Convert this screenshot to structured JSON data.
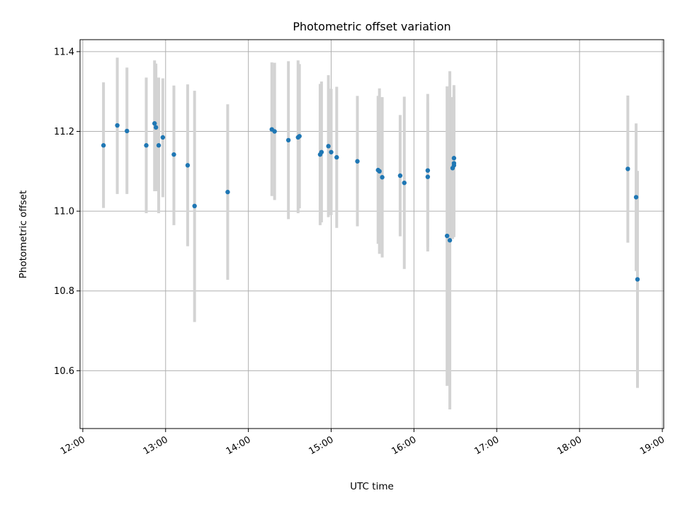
{
  "chart_data": {
    "type": "scatter",
    "title": "Photometric offset variation",
    "xlabel": "UTC time",
    "ylabel": "Photometric offset",
    "x_ticks": [
      "12:00",
      "13:00",
      "14:00",
      "15:00",
      "16:00",
      "17:00",
      "18:00",
      "19:00"
    ],
    "y_ticks": [
      "10.6",
      "10.8",
      "11.0",
      "11.2",
      "11.4"
    ],
    "xlim": [
      "11:58",
      "19:01"
    ],
    "ylim": [
      10.455,
      11.43
    ],
    "grid": true,
    "colors": {
      "point": "#1f77b4",
      "errorbar": "#d3d3d3",
      "grid": "#b0b0b0"
    },
    "points": [
      {
        "t": "12:15",
        "y": 11.165,
        "lo": 11.008,
        "hi": 11.323
      },
      {
        "t": "12:25",
        "y": 11.215,
        "lo": 11.043,
        "hi": 11.385
      },
      {
        "t": "12:32",
        "y": 11.201,
        "lo": 11.043,
        "hi": 11.36
      },
      {
        "t": "12:46",
        "y": 11.165,
        "lo": 10.995,
        "hi": 11.335
      },
      {
        "t": "12:52",
        "y": 11.22,
        "lo": 11.05,
        "hi": 11.378
      },
      {
        "t": "12:53",
        "y": 11.21,
        "lo": 11.05,
        "hi": 11.37
      },
      {
        "t": "12:55",
        "y": 11.165,
        "lo": 10.995,
        "hi": 11.335
      },
      {
        "t": "12:58",
        "y": 11.185,
        "lo": 11.035,
        "hi": 11.333
      },
      {
        "t": "13:06",
        "y": 11.142,
        "lo": 10.965,
        "hi": 11.315
      },
      {
        "t": "13:16",
        "y": 11.115,
        "lo": 10.912,
        "hi": 11.318
      },
      {
        "t": "13:21",
        "y": 11.013,
        "lo": 10.722,
        "hi": 11.302
      },
      {
        "t": "13:45",
        "y": 11.048,
        "lo": 10.828,
        "hi": 11.268
      },
      {
        "t": "14:17",
        "y": 11.205,
        "lo": 11.038,
        "hi": 11.373
      },
      {
        "t": "14:19",
        "y": 11.2,
        "lo": 11.028,
        "hi": 11.372
      },
      {
        "t": "14:29",
        "y": 11.178,
        "lo": 10.98,
        "hi": 11.376
      },
      {
        "t": "14:36",
        "y": 11.185,
        "lo": 10.995,
        "hi": 11.378
      },
      {
        "t": "14:37",
        "y": 11.188,
        "lo": 11.007,
        "hi": 11.369
      },
      {
        "t": "14:52",
        "y": 11.142,
        "lo": 10.965,
        "hi": 11.319
      },
      {
        "t": "14:53",
        "y": 11.148,
        "lo": 10.972,
        "hi": 11.325
      },
      {
        "t": "14:58",
        "y": 11.163,
        "lo": 10.985,
        "hi": 11.341
      },
      {
        "t": "15:00",
        "y": 11.148,
        "lo": 10.99,
        "hi": 11.307
      },
      {
        "t": "15:04",
        "y": 11.135,
        "lo": 10.958,
        "hi": 11.312
      },
      {
        "t": "15:19",
        "y": 11.125,
        "lo": 10.962,
        "hi": 11.289
      },
      {
        "t": "15:34",
        "y": 11.103,
        "lo": 10.918,
        "hi": 11.289
      },
      {
        "t": "15:35",
        "y": 11.1,
        "lo": 10.893,
        "hi": 11.308
      },
      {
        "t": "15:37",
        "y": 11.085,
        "lo": 10.884,
        "hi": 11.286
      },
      {
        "t": "15:50",
        "y": 11.089,
        "lo": 10.937,
        "hi": 11.241
      },
      {
        "t": "15:53",
        "y": 11.071,
        "lo": 10.855,
        "hi": 11.287
      },
      {
        "t": "16:10",
        "y": 11.102,
        "lo": 10.91,
        "hi": 11.294
      },
      {
        "t": "16:10",
        "y": 11.086,
        "lo": 10.899,
        "hi": 11.273
      },
      {
        "t": "16:24",
        "y": 10.938,
        "lo": 10.562,
        "hi": 11.313
      },
      {
        "t": "16:26",
        "y": 10.927,
        "lo": 10.503,
        "hi": 11.351
      },
      {
        "t": "16:28",
        "y": 11.108,
        "lo": 10.93,
        "hi": 11.286
      },
      {
        "t": "16:29",
        "y": 11.115,
        "lo": 10.94,
        "hi": 11.29
      },
      {
        "t": "16:29",
        "y": 11.133,
        "lo": 10.95,
        "hi": 11.316
      },
      {
        "t": "16:29",
        "y": 11.12,
        "lo": 10.935,
        "hi": 11.305
      },
      {
        "t": "18:35",
        "y": 11.106,
        "lo": 10.921,
        "hi": 11.29
      },
      {
        "t": "18:41",
        "y": 11.035,
        "lo": 10.85,
        "hi": 11.22
      },
      {
        "t": "18:42",
        "y": 10.829,
        "lo": 10.557,
        "hi": 11.101
      }
    ]
  }
}
